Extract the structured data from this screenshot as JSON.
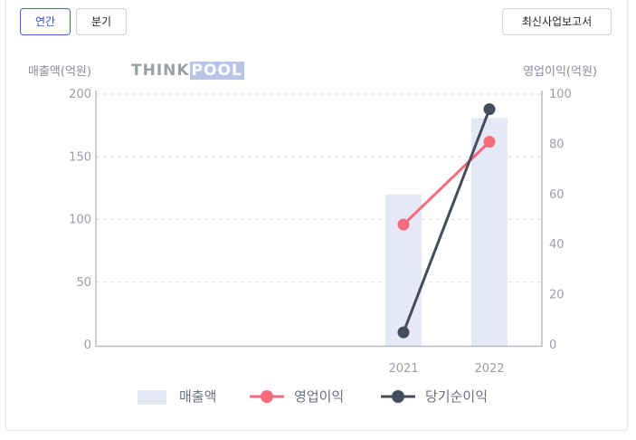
{
  "tabs": {
    "annual": "연간",
    "quarter": "분기"
  },
  "report_button": "최신사업보고서",
  "logo": {
    "part1": "THINK",
    "part2": "POOL"
  },
  "chart_data": {
    "type": "bar",
    "categories": [
      "2021",
      "2022"
    ],
    "y_left_label": "매출액(억원)",
    "y_right_label": "영업이익(억원)",
    "y_left_ticks": [
      "200",
      "150",
      "100",
      "50",
      "0"
    ],
    "y_right_ticks": [
      "100",
      "80",
      "60",
      "40",
      "20",
      "0"
    ],
    "ylim_left": [
      0,
      200
    ],
    "ylim_right": [
      0,
      100
    ],
    "grid": true,
    "legend_position": "bottom",
    "series": [
      {
        "name": "매출액",
        "type": "bar",
        "axis": "left",
        "color": "#e6e9f5",
        "values": [
          120,
          181
        ]
      },
      {
        "name": "영업이익",
        "type": "line",
        "axis": "right",
        "color": "#f56b7b",
        "values": [
          48,
          81
        ]
      },
      {
        "name": "당기순이익",
        "type": "line",
        "axis": "right",
        "color": "#444d5c",
        "values": [
          5,
          94
        ]
      }
    ]
  }
}
